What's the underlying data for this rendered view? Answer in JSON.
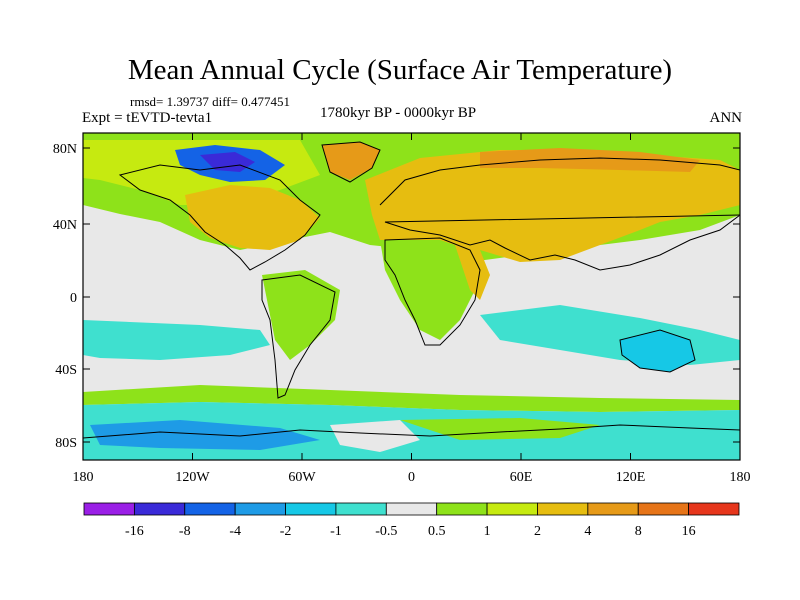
{
  "title": "Mean Annual Cycle (Surface Air Temperature)",
  "stats": "rmsd= 1.39737 diff= 0.477451",
  "experiment": "Expt = tEVTD-tevta1",
  "period": "1780kyr BP - 0000kyr BP",
  "season": "ANN",
  "axes": {
    "y_ticks": [
      "80N",
      "40N",
      "0",
      "40S",
      "80S"
    ],
    "x_ticks": [
      "180",
      "120W",
      "60W",
      "0",
      "60E",
      "120E",
      "180"
    ]
  },
  "colorbar": {
    "labels": [
      "-16",
      "-8",
      "-4",
      "-2",
      "-1",
      "-0.5",
      "0.5",
      "1",
      "2",
      "4",
      "8",
      "16"
    ],
    "colors": [
      "#9a1fe6",
      "#3a2ad8",
      "#1463e6",
      "#1e9be6",
      "#16c8e6",
      "#3fe0cf",
      "#e8e8e8",
      "#8ee21a",
      "#c6ea10",
      "#e6bd10",
      "#e69a18",
      "#e67418",
      "#e6361c"
    ]
  },
  "colors": {
    "ocean_neutral": "#e8e8e8",
    "coast": "#000000"
  }
}
